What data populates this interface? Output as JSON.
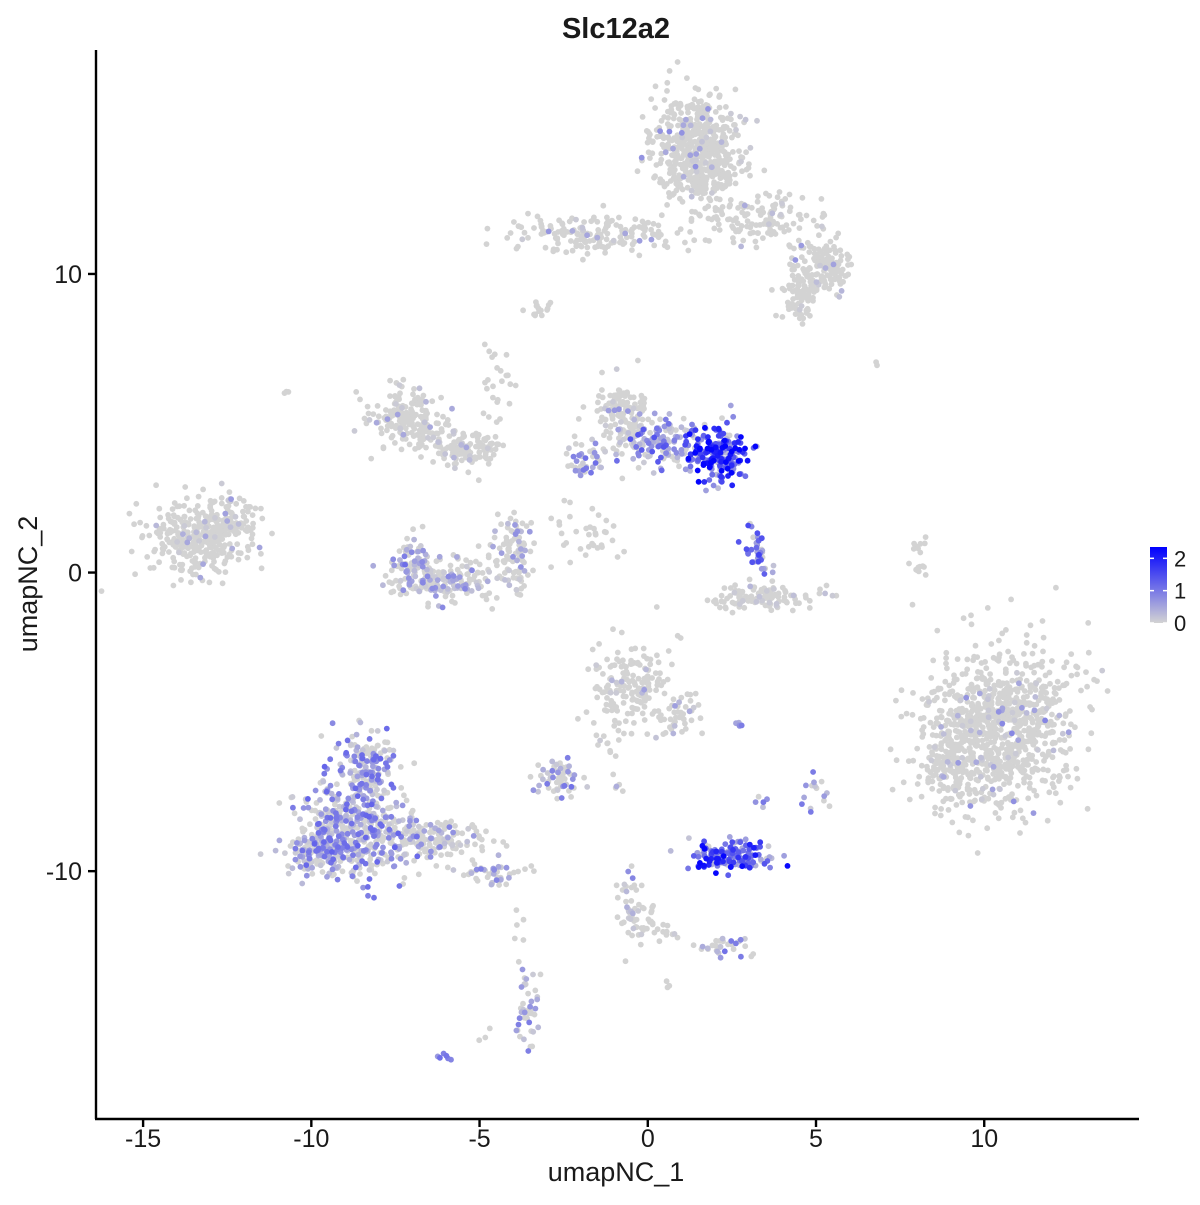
{
  "chart_data": {
    "type": "scatter",
    "title": "Slc12a2",
    "xlabel": "umapNC_1",
    "ylabel": "umapNC_2",
    "xlim": [
      -16.4,
      14.6
    ],
    "ylim": [
      -18.3,
      17.5
    ],
    "x_ticks": [
      -15,
      -10,
      -5,
      0,
      5,
      10
    ],
    "x_tick_labels": [
      "-15",
      "-10",
      "-5",
      "0",
      "5",
      "10"
    ],
    "y_ticks": [
      -10,
      0,
      10
    ],
    "y_tick_labels": [
      "-10",
      "0",
      "10"
    ],
    "grid": false,
    "legend": {
      "position": "right",
      "type": "colorbar",
      "range": [
        0,
        2.35
      ],
      "ticks": [
        0,
        1,
        2
      ],
      "tick_labels": [
        "0",
        "1",
        "2"
      ],
      "color_low": "#d3d3d3",
      "color_high": "#0000ff"
    },
    "point_color_low": "#d3d3d3",
    "point_color_high": "#0000ff",
    "clusters": [
      {
        "cx": 1.5,
        "cy": 14.2,
        "sx": 0.7,
        "sy": 0.9,
        "n": 600,
        "expr": 0.02,
        "max": 1.1
      },
      {
        "cx": -1.8,
        "cy": 11.3,
        "sx": 1.3,
        "sy": 0.35,
        "n": 180,
        "expr": 0.02,
        "max": 1.0
      },
      {
        "cx": 3.3,
        "cy": 11.8,
        "sx": 0.9,
        "sy": 0.4,
        "n": 120,
        "expr": 0.02,
        "max": 1.0
      },
      {
        "cx": 5.2,
        "cy": 10.2,
        "sx": 0.5,
        "sy": 0.45,
        "n": 160,
        "expr": 0.03,
        "max": 1.0
      },
      {
        "cx": 4.5,
        "cy": 9.1,
        "sx": 0.25,
        "sy": 0.4,
        "n": 60,
        "expr": 0.02,
        "max": 0.9
      },
      {
        "cx": -3.2,
        "cy": 8.8,
        "sx": 0.25,
        "sy": 0.15,
        "n": 15,
        "expr": 0.0,
        "max": 0.2
      },
      {
        "cx": -13.3,
        "cy": 1.2,
        "sx": 0.75,
        "sy": 0.65,
        "n": 350,
        "expr": 0.02,
        "max": 0.9
      },
      {
        "cx": -12.2,
        "cy": 1.9,
        "sx": 0.35,
        "sy": 0.5,
        "n": 40,
        "expr": 0.02,
        "max": 0.8
      },
      {
        "cx": -7.2,
        "cy": 5.2,
        "sx": 0.5,
        "sy": 0.45,
        "n": 150,
        "expr": 0.02,
        "max": 0.8
      },
      {
        "cx": -5.3,
        "cy": 4.1,
        "sx": 0.45,
        "sy": 0.3,
        "n": 110,
        "expr": 0.02,
        "max": 0.8
      },
      {
        "cx": -6.2,
        "cy": 4.6,
        "sx": 0.5,
        "sy": 0.4,
        "n": 60,
        "expr": 0.02,
        "max": 0.7
      },
      {
        "cx": -4.5,
        "cy": 6.3,
        "sx": 0.2,
        "sy": 0.8,
        "n": 25,
        "expr": 0.0,
        "max": 0.4
      },
      {
        "cx": -6.2,
        "cy": -0.3,
        "sx": 0.8,
        "sy": 0.35,
        "n": 200,
        "expr": 0.2,
        "max": 1.0
      },
      {
        "cx": -4.0,
        "cy": 0.7,
        "sx": 0.35,
        "sy": 0.7,
        "n": 100,
        "expr": 0.12,
        "max": 1.0
      },
      {
        "cx": -7.0,
        "cy": 0.6,
        "sx": 0.25,
        "sy": 0.5,
        "n": 50,
        "expr": 0.2,
        "max": 1.4
      },
      {
        "cx": -0.8,
        "cy": 5.3,
        "sx": 0.4,
        "sy": 0.6,
        "n": 140,
        "expr": 0.05,
        "max": 1.0
      },
      {
        "cx": 0.5,
        "cy": 4.3,
        "sx": 0.7,
        "sy": 0.35,
        "n": 140,
        "expr": 0.4,
        "max": 1.5
      },
      {
        "cx": 2.1,
        "cy": 4.0,
        "sx": 0.45,
        "sy": 0.45,
        "n": 200,
        "expr": 0.9,
        "max": 2.3
      },
      {
        "cx": -1.8,
        "cy": 3.8,
        "sx": 0.4,
        "sy": 0.3,
        "n": 40,
        "expr": 0.3,
        "max": 1.2
      },
      {
        "cx": 3.2,
        "cy": 0.7,
        "sx": 0.2,
        "sy": 0.5,
        "n": 40,
        "expr": 0.5,
        "max": 1.6
      },
      {
        "cx": 3.5,
        "cy": -0.8,
        "sx": 0.75,
        "sy": 0.2,
        "n": 120,
        "expr": 0.02,
        "max": 0.6
      },
      {
        "cx": 8.1,
        "cy": 0.3,
        "sx": 0.15,
        "sy": 0.5,
        "n": 18,
        "expr": 0.0,
        "max": 0.3
      },
      {
        "cx": -2.1,
        "cy": 1.5,
        "sx": 0.5,
        "sy": 0.6,
        "n": 20,
        "expr": 0.0,
        "max": 0.4
      },
      {
        "cx": -1.5,
        "cy": 1.0,
        "sx": 0.5,
        "sy": 0.3,
        "n": 15,
        "expr": 0.0,
        "max": 0.3
      },
      {
        "cx": 10.5,
        "cy": -5.2,
        "sx": 1.1,
        "sy": 1.3,
        "n": 900,
        "expr": 0.02,
        "max": 1.2
      },
      {
        "cx": 9.0,
        "cy": -6.3,
        "sx": 0.5,
        "sy": 0.8,
        "n": 150,
        "expr": 0.02,
        "max": 0.9
      },
      {
        "cx": -0.5,
        "cy": -3.8,
        "sx": 0.6,
        "sy": 0.7,
        "n": 170,
        "expr": 0.03,
        "max": 1.0
      },
      {
        "cx": 0.9,
        "cy": -4.8,
        "sx": 0.35,
        "sy": 0.4,
        "n": 40,
        "expr": 0.05,
        "max": 0.9
      },
      {
        "cx": -2.6,
        "cy": -6.9,
        "sx": 0.35,
        "sy": 0.3,
        "n": 55,
        "expr": 0.3,
        "max": 1.1
      },
      {
        "cx": -8.8,
        "cy": -8.6,
        "sx": 0.85,
        "sy": 0.9,
        "n": 500,
        "expr": 0.35,
        "max": 1.3
      },
      {
        "cx": -8.4,
        "cy": -6.4,
        "sx": 0.4,
        "sy": 0.55,
        "n": 140,
        "expr": 0.35,
        "max": 1.2
      },
      {
        "cx": -9.8,
        "cy": -9.3,
        "sx": 0.4,
        "sy": 0.35,
        "n": 100,
        "expr": 0.35,
        "max": 1.2
      },
      {
        "cx": -6.2,
        "cy": -9.0,
        "sx": 0.8,
        "sy": 0.35,
        "n": 160,
        "expr": 0.15,
        "max": 1.1
      },
      {
        "cx": -4.5,
        "cy": -10.1,
        "sx": 0.4,
        "sy": 0.2,
        "n": 40,
        "expr": 0.2,
        "max": 1.1
      },
      {
        "cx": 2.4,
        "cy": -9.5,
        "sx": 0.55,
        "sy": 0.25,
        "n": 160,
        "expr": 0.75,
        "max": 2.3
      },
      {
        "cx": -0.4,
        "cy": -10.9,
        "sx": 0.25,
        "sy": 0.9,
        "n": 40,
        "expr": 0.15,
        "max": 1.2
      },
      {
        "cx": -0.1,
        "cy": -11.6,
        "sx": 0.25,
        "sy": 0.3,
        "n": 20,
        "expr": 0.05,
        "max": 0.8
      },
      {
        "cx": 2.3,
        "cy": -12.5,
        "sx": 0.4,
        "sy": 0.18,
        "n": 30,
        "expr": 0.3,
        "max": 1.2
      },
      {
        "cx": -3.6,
        "cy": -14.7,
        "sx": 0.18,
        "sy": 0.7,
        "n": 45,
        "expr": 0.3,
        "max": 1.0
      },
      {
        "cx": 5.1,
        "cy": -7.4,
        "sx": 0.2,
        "sy": 0.3,
        "n": 15,
        "expr": 0.3,
        "max": 1.0
      },
      {
        "cx": 3.4,
        "cy": -7.7,
        "sx": 0.1,
        "sy": 0.15,
        "n": 5,
        "expr": 0.4,
        "max": 1.0
      },
      {
        "cx": 2.8,
        "cy": -5.1,
        "sx": 0.15,
        "sy": 0.1,
        "n": 5,
        "expr": 0.5,
        "max": 1.0
      },
      {
        "cx": -6.1,
        "cy": -16.2,
        "sx": 0.15,
        "sy": 0.08,
        "n": 6,
        "expr": 0.6,
        "max": 1.1
      },
      {
        "cx": -1.3,
        "cy": -5.8,
        "sx": 0.3,
        "sy": 0.6,
        "n": 12,
        "expr": 0.0,
        "max": 0.2
      },
      {
        "cx": 0.5,
        "cy": -12.0,
        "sx": 0.3,
        "sy": 0.2,
        "n": 10,
        "expr": 0.0,
        "max": 0.2
      },
      {
        "cx": 0.5,
        "cy": -13.8,
        "sx": 0.1,
        "sy": 0.1,
        "n": 3,
        "expr": 0.0,
        "max": 0.1
      },
      {
        "cx": -3.9,
        "cy": -11.8,
        "sx": 0.1,
        "sy": 0.4,
        "n": 4,
        "expr": 0.0,
        "max": 0.2
      },
      {
        "cx": -0.9,
        "cy": -7.2,
        "sx": 0.1,
        "sy": 0.2,
        "n": 5,
        "expr": 0.1,
        "max": 0.8
      },
      {
        "cx": 6.7,
        "cy": 7.0,
        "sx": 0.05,
        "sy": 0.05,
        "n": 2,
        "expr": 0.0,
        "max": 0.1
      },
      {
        "cx": -10.7,
        "cy": 6.1,
        "sx": 0.05,
        "sy": 0.05,
        "n": 3,
        "expr": 0.0,
        "max": 0.1
      },
      {
        "cx": -4.9,
        "cy": -15.6,
        "sx": 0.1,
        "sy": 0.1,
        "n": 3,
        "expr": 0.0,
        "max": 0.1
      }
    ]
  }
}
